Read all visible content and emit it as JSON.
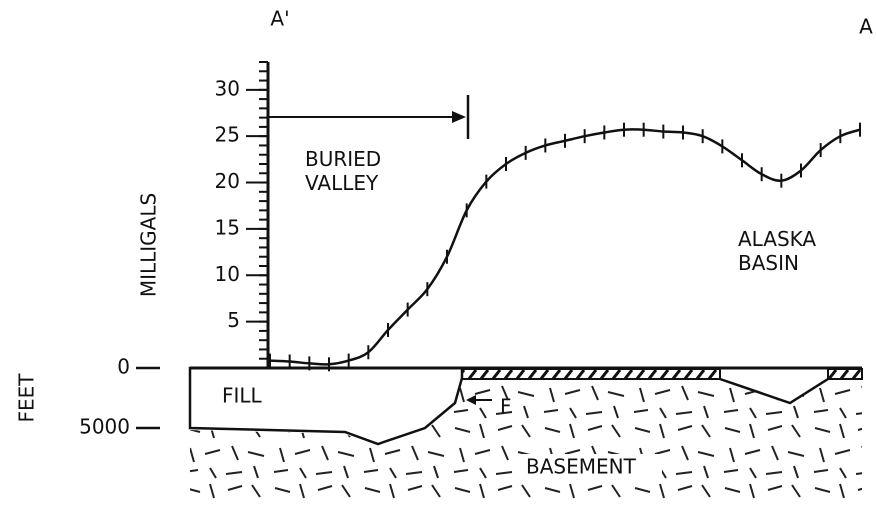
{
  "chart_data": {
    "type": "line",
    "left_label": "A'",
    "right_label": "A",
    "ylabel": "MILLIGALS",
    "values": [
      0.8,
      0.7,
      0.5,
      0.4,
      0.8,
      1.7,
      4.1,
      6.3,
      8.5,
      12,
      17,
      20.1,
      22,
      23.2,
      24,
      24.5,
      25,
      25.4,
      25.7,
      25.7,
      25.5,
      25.4,
      25,
      23.9,
      22.4,
      20.9,
      20.2,
      21.3,
      23.5,
      25,
      25.7
    ],
    "color": "#111111",
    "ylim": [
      0,
      33
    ],
    "yticks": [
      5,
      10,
      15,
      20,
      25,
      30
    ],
    "y2label": "FEET",
    "y2lim": [
      0,
      5000
    ],
    "y2ticks": [
      0,
      5000
    ],
    "annotations": {
      "buried_valley": "BURIED\nVALLEY",
      "alaska_basin": "ALASKA\nBASIN",
      "fill": "FILL",
      "fault": "F",
      "basement": "BASEMENT"
    }
  }
}
